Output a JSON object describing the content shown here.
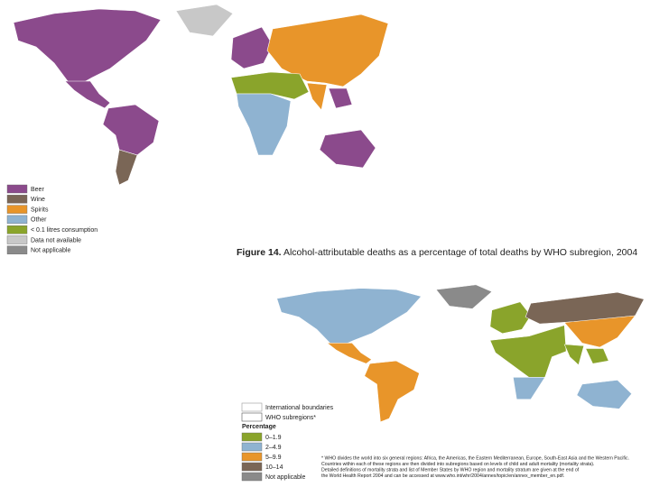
{
  "top_map": {
    "legend": [
      {
        "label": "Beer",
        "color": "#8b4a8c"
      },
      {
        "label": "Wine",
        "color": "#7a6656"
      },
      {
        "label": "Spirits",
        "color": "#e8952a"
      },
      {
        "label": "Other",
        "color": "#8fb3d1"
      },
      {
        "label": "< 0.1 litres consumption",
        "color": "#8aa42b"
      },
      {
        "label": "Data not available",
        "color": "#c8c8c8"
      },
      {
        "label": "Not applicable",
        "color": "#8a8a8a"
      }
    ]
  },
  "figure": {
    "label": "Figure 14.",
    "title": "Alcohol-attributable deaths as a percentage of total deaths by WHO subregion, 2004"
  },
  "bottom_map": {
    "boundaries": [
      "International boundaries",
      "WHO subregions*"
    ],
    "legend_title": "Percentage",
    "legend": [
      {
        "label": "0–1.9",
        "color": "#8aa42b"
      },
      {
        "label": "2–4.9",
        "color": "#8fb3d1"
      },
      {
        "label": "5–9.9",
        "color": "#e8952a"
      },
      {
        "label": "10–14",
        "color": "#7a6656"
      },
      {
        "label": "Not applicable",
        "color": "#8a8a8a"
      }
    ],
    "footnote": [
      "* WHO divides the world into six general regions: Africa, the Americas, the Eastern Mediterranean, Europe, South-East Asia and the Western Pacific.",
      "Countries within each of these regions are then divided into subregions based on levels of child and adult mortality (mortality strata).",
      "Detailed definitions of mortality strata and list of Member States by WHO region and mortality stratum are given at the end of",
      "the World Health Report 2004 and can be accessed at www.who.int/whr/2004/annex/topic/en/annex_member_en.pdf."
    ]
  }
}
